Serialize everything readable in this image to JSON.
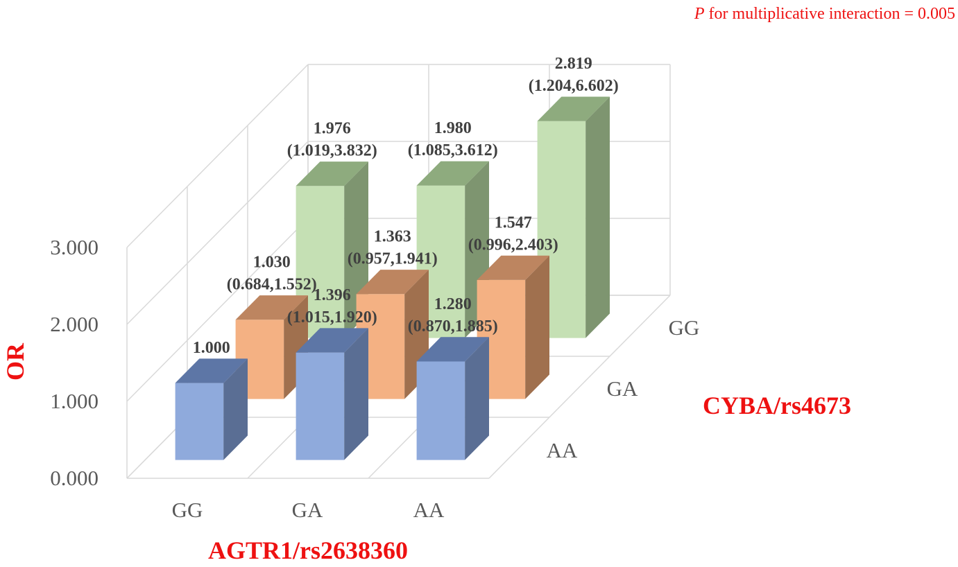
{
  "chart_data": {
    "type": "bar",
    "subtype": "3d-column",
    "annotation": {
      "p_symbol": "P",
      "text": "for multiplicative interaction = 0.005"
    },
    "x_axis_title": "AGTR1/rs2638360",
    "y_axis_title": "OR",
    "depth_axis_title": "CYBA/rs4673",
    "categories": [
      "GG",
      "GA",
      "AA"
    ],
    "yticks": [
      "0.000",
      "1.000",
      "2.000",
      "3.000"
    ],
    "ylim": [
      0,
      3
    ],
    "grid": true,
    "series": [
      {
        "name": "AA",
        "color": "#8faadc",
        "side_color": "#5a6e94",
        "top_color": "#5d76a6",
        "values": [
          1.0,
          1.396,
          1.28
        ],
        "labels": [
          [
            "1.000"
          ],
          [
            "1.396",
            "(1.015,1.920)"
          ],
          [
            "1.280",
            "(0.870,1.885)"
          ]
        ]
      },
      {
        "name": "GA",
        "color": "#f4b183",
        "side_color": "#a0704e",
        "top_color": "#bd8560",
        "values": [
          1.03,
          1.363,
          1.547
        ],
        "labels": [
          [
            "1.030",
            "(0.684,1.552)"
          ],
          [
            "1.363",
            "(0.957,1.941)"
          ],
          [
            "1.547",
            "(0.996,2.403)"
          ]
        ]
      },
      {
        "name": "GG",
        "color": "#c5e0b4",
        "side_color": "#7e9570",
        "top_color": "#8eab7e",
        "values": [
          1.976,
          1.98,
          2.819
        ],
        "labels": [
          [
            "1.976",
            "(1.019,3.832)"
          ],
          [
            "1.980",
            "(1.085,3.612)"
          ],
          [
            "2.819",
            "(1.204,6.602)"
          ]
        ]
      }
    ]
  }
}
